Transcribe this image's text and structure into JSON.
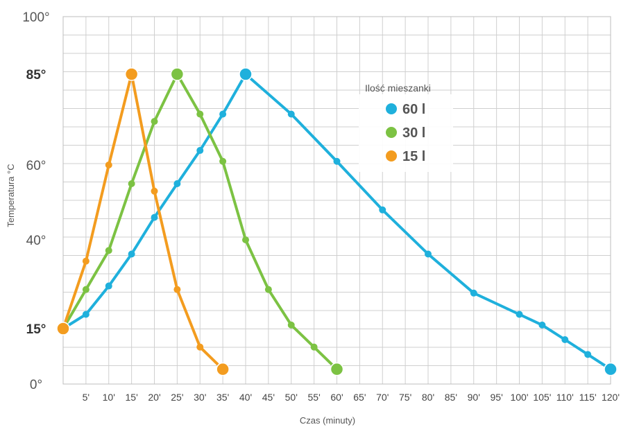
{
  "chart_data": {
    "type": "line",
    "xlabel": "Czas (minuty)",
    "ylabel": "Temperatura °C",
    "grid": true,
    "legend": {
      "title": "Ilość mieszanki",
      "placement": "top-right"
    },
    "x_ticks": [
      "5'",
      "10'",
      "15'",
      "20'",
      "25'",
      "30'",
      "35'",
      "40'",
      "45'",
      "50'",
      "55'",
      "60'",
      "65'",
      "70'",
      "75'",
      "80'",
      "85'",
      "90'",
      "95'",
      "100'",
      "105'",
      "110'",
      "115'",
      "120'"
    ],
    "y_ticks": [
      {
        "value": 0,
        "label": "0°",
        "bold": false
      },
      {
        "value": 15,
        "label": "15°",
        "bold": true
      },
      {
        "value": 40,
        "label": "40°",
        "bold": false
      },
      {
        "value": 60,
        "label": "60°",
        "bold": false
      },
      {
        "value": 85,
        "label": "85°",
        "bold": true
      },
      {
        "value": 100,
        "label": "100°",
        "bold": false
      }
    ],
    "xlim": [
      0,
      120
    ],
    "ylim": [
      0,
      100
    ],
    "series": [
      {
        "name": "60 l",
        "color": "#1fb0dc",
        "points": [
          [
            0,
            15
          ],
          [
            5,
            19
          ],
          [
            10,
            27
          ],
          [
            15,
            36
          ],
          [
            20,
            46
          ],
          [
            25,
            55
          ],
          [
            30,
            64
          ],
          [
            35,
            74
          ],
          [
            40,
            85
          ],
          [
            50,
            74
          ],
          [
            60,
            61
          ],
          [
            70,
            48
          ],
          [
            80,
            36
          ],
          [
            90,
            25
          ],
          [
            100,
            19
          ],
          [
            105,
            16
          ],
          [
            110,
            12
          ],
          [
            115,
            8
          ],
          [
            120,
            4
          ]
        ]
      },
      {
        "name": "30 l",
        "color": "#7cc243",
        "points": [
          [
            0,
            15
          ],
          [
            5,
            26
          ],
          [
            10,
            37
          ],
          [
            15,
            55
          ],
          [
            20,
            72
          ],
          [
            25,
            85
          ],
          [
            30,
            74
          ],
          [
            35,
            61
          ],
          [
            40,
            40
          ],
          [
            45,
            26
          ],
          [
            50,
            16
          ],
          [
            55,
            10
          ],
          [
            60,
            4
          ]
        ]
      },
      {
        "name": "15 l",
        "color": "#f39c1f",
        "points": [
          [
            0,
            15
          ],
          [
            5,
            34
          ],
          [
            10,
            60
          ],
          [
            15,
            85
          ],
          [
            20,
            53
          ],
          [
            25,
            26
          ],
          [
            30,
            10
          ],
          [
            35,
            4
          ]
        ]
      }
    ]
  }
}
